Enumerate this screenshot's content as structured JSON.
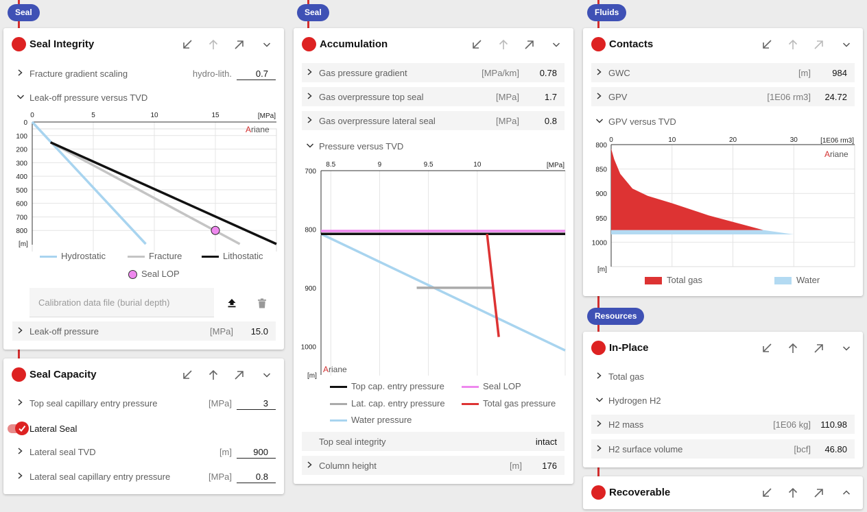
{
  "colors": {
    "accent": "#dd2222",
    "pill": "#3f51b5",
    "hydrostatic": "#a8d4ef",
    "fracture": "#c4c4c4",
    "lithostatic": "#111111",
    "seal_lop": "#ee88ee",
    "total_gas": "#dd3333",
    "water": "#b3daf2",
    "lat_cap": "#aaaaaa"
  },
  "col1": {
    "pill": "Seal",
    "seal_integrity": {
      "title": "Seal Integrity",
      "fracture_gradient_label": "Fracture gradient scaling",
      "fracture_gradient_unit": "hydro-lith.",
      "fracture_gradient_value": "0.7",
      "chart_title": "Leak-off pressure versus TVD",
      "chart_unit_x": "[MPa]",
      "chart_unit_y": "[m]",
      "brand_mark": "A",
      "brand_rest": "riane",
      "legend": {
        "hydrostatic": "Hydrostatic",
        "fracture": "Fracture",
        "lithostatic": "Lithostatic",
        "seal_lop": "Seal LOP"
      },
      "calibration_placeholder": "Calibration data file (burial depth)",
      "leakoff_label": "Leak-off pressure",
      "leakoff_unit": "[MPa]",
      "leakoff_value": "15.0"
    },
    "seal_capacity": {
      "title": "Seal Capacity",
      "top_seal_label": "Top seal capillary entry pressure",
      "top_seal_unit": "[MPa]",
      "top_seal_value": "3",
      "lateral_toggle_label": "Lateral Seal",
      "lateral_tvd_label": "Lateral seal TVD",
      "lateral_tvd_unit": "[m]",
      "lateral_tvd_value": "900",
      "lateral_cap_label": "Lateral seal capillary entry pressure",
      "lateral_cap_unit": "[MPa]",
      "lateral_cap_value": "0.8"
    }
  },
  "col2": {
    "pill": "Seal",
    "accumulation": {
      "title": "Accumulation",
      "rows": [
        {
          "label": "Gas pressure gradient",
          "unit": "[MPa/km]",
          "value": "0.78"
        },
        {
          "label": "Gas overpressure top seal",
          "unit": "[MPa]",
          "value": "1.7"
        },
        {
          "label": "Gas overpressure lateral seal",
          "unit": "[MPa]",
          "value": "0.8"
        }
      ],
      "chart_title": "Pressure versus TVD",
      "chart_unit_x": "[MPa]",
      "chart_unit_y": "[m]",
      "brand_mark": "A",
      "brand_rest": "riane",
      "legend": {
        "top_cap": "Top cap. entry pressure",
        "seal_lop": "Seal LOP",
        "lat_cap": "Lat. cap. entry pressure",
        "total_gas": "Total gas pressure",
        "water": "Water pressure"
      },
      "integrity_label": "Top seal integrity",
      "integrity_value": "intact",
      "column_label": "Column height",
      "column_unit": "[m]",
      "column_value": "176"
    }
  },
  "col3": {
    "pill": "Fluids",
    "contacts": {
      "title": "Contacts",
      "rows": [
        {
          "label": "GWC",
          "unit": "[m]",
          "value": "984"
        },
        {
          "label": "GPV",
          "unit": "[1E06 rm3]",
          "value": "24.72"
        }
      ],
      "chart_title": "GPV versus TVD",
      "chart_unit_x": "[1E06 rm3]",
      "chart_unit_y": "[m]",
      "brand_mark": "A",
      "brand_rest": "riane",
      "legend": {
        "total_gas": "Total gas",
        "water": "Water"
      }
    },
    "resources_pill": "Resources",
    "in_place": {
      "title": "In-Place",
      "total_gas_label": "Total gas",
      "hydrogen_label": "Hydrogen H2",
      "rows": [
        {
          "label": "H2 mass",
          "unit": "[1E06 kg]",
          "value": "110.98"
        },
        {
          "label": "H2 surface volume",
          "unit": "[bcf]",
          "value": "46.80"
        }
      ]
    },
    "recoverable": {
      "title": "Recoverable"
    }
  },
  "chart_data": [
    {
      "type": "line",
      "title": "Leak-off pressure versus TVD",
      "xlabel": "[MPa]",
      "ylabel": "[m]",
      "xlim": [
        0,
        20
      ],
      "ylim": [
        0,
        900
      ],
      "x_ticks": [
        0,
        5,
        10,
        15
      ],
      "y_ticks": [
        0,
        100,
        200,
        300,
        400,
        500,
        600,
        700,
        800
      ],
      "series": [
        {
          "name": "Hydrostatic",
          "points": [
            [
              0,
              0
            ],
            [
              9.3,
              900
            ]
          ]
        },
        {
          "name": "Fracture",
          "points": [
            [
              1.5,
              150
            ],
            [
              17,
              900
            ]
          ]
        },
        {
          "name": "Lithostatic",
          "points": [
            [
              1.5,
              150
            ],
            [
              20,
              900
            ]
          ]
        },
        {
          "name": "Seal LOP",
          "points": [
            [
              15,
              800
            ]
          ]
        }
      ]
    },
    {
      "type": "line",
      "title": "Pressure versus TVD",
      "xlabel": "[MPa]",
      "ylabel": "[m]",
      "xlim": [
        8.4,
        10.9
      ],
      "ylim": [
        700,
        1050
      ],
      "x_ticks": [
        8.5,
        9,
        9.5,
        10
      ],
      "y_ticks": [
        700,
        800,
        900,
        1000
      ],
      "series": [
        {
          "name": "Top cap. entry pressure",
          "points": [
            [
              8.4,
              808
            ],
            [
              10.9,
              808
            ]
          ]
        },
        {
          "name": "Seal LOP",
          "points": [
            [
              8.4,
              803
            ],
            [
              10.9,
              803
            ]
          ]
        },
        {
          "name": "Lat. cap. entry pressure",
          "points": [
            [
              9.38,
              900
            ],
            [
              10.17,
              900
            ]
          ]
        },
        {
          "name": "Total gas pressure",
          "points": [
            [
              10.1,
              808
            ],
            [
              10.22,
              984
            ]
          ]
        },
        {
          "name": "Water pressure",
          "points": [
            [
              8.4,
              808
            ],
            [
              10.9,
              1007
            ]
          ]
        }
      ]
    },
    {
      "type": "area",
      "title": "GPV versus TVD",
      "xlabel": "[1E06 rm3]",
      "ylabel": "[m]",
      "xlim": [
        0,
        40
      ],
      "ylim": [
        800,
        1050
      ],
      "x_ticks": [
        0,
        10,
        20,
        30
      ],
      "y_ticks": [
        800,
        850,
        900,
        950,
        1000
      ],
      "series": [
        {
          "name": "Total gas",
          "points": [
            [
              0,
              808
            ],
            [
              0.5,
              830
            ],
            [
              1.5,
              860
            ],
            [
              3.5,
              890
            ],
            [
              6,
              905
            ],
            [
              10,
              920
            ],
            [
              16,
              945
            ],
            [
              22,
              965
            ],
            [
              25,
              975
            ]
          ]
        },
        {
          "name": "Water",
          "points": [
            [
              0,
              975
            ],
            [
              25,
              975
            ],
            [
              30,
              984
            ]
          ]
        }
      ]
    }
  ]
}
